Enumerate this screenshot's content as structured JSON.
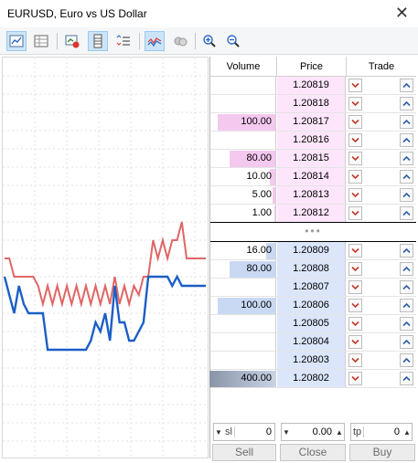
{
  "window": {
    "title": "EURUSD, Euro vs US Dollar"
  },
  "toolbar": {
    "buttons": [
      {
        "icon": "chart-with-settings-icon",
        "active": true
      },
      {
        "icon": "table-grid-icon",
        "active": false
      },
      {
        "icon": "chart-delete-icon",
        "active": false
      },
      {
        "icon": "depth-of-market-icon",
        "active": true
      },
      {
        "icon": "ticks-list-icon",
        "active": false
      },
      {
        "icon": "tick-chart-icon",
        "active": true
      },
      {
        "icon": "one-click-trading-icon",
        "active": false
      },
      {
        "icon": "zoom-in-icon",
        "active": false
      },
      {
        "icon": "zoom-out-icon",
        "active": false
      }
    ]
  },
  "headers": {
    "volume": "Volume",
    "price": "Price",
    "trade": "Trade"
  },
  "ask_rows": [
    {
      "volume": "",
      "price": "1.20819",
      "vol_fill": 0
    },
    {
      "volume": "",
      "price": "1.20818",
      "vol_fill": 0
    },
    {
      "volume": "100.00",
      "price": "1.20817",
      "vol_fill": 0.25
    },
    {
      "volume": "",
      "price": "1.20816",
      "vol_fill": 0
    },
    {
      "volume": "80.00",
      "price": "1.20815",
      "vol_fill": 0.2
    },
    {
      "volume": "10.00",
      "price": "1.20814",
      "vol_fill": 0.025
    },
    {
      "volume": "5.00",
      "price": "1.20813",
      "vol_fill": 0.0125
    },
    {
      "volume": "1.00",
      "price": "1.20812",
      "vol_fill": 0.0025
    }
  ],
  "spread_marker": "•••",
  "bid_rows": [
    {
      "volume": "16.00",
      "price": "1.20809",
      "vol_fill": 0.04
    },
    {
      "volume": "80.00",
      "price": "1.20808",
      "vol_fill": 0.2
    },
    {
      "volume": "",
      "price": "1.20807",
      "vol_fill": 0
    },
    {
      "volume": "100.00",
      "price": "1.20806",
      "vol_fill": 0.25
    },
    {
      "volume": "",
      "price": "1.20805",
      "vol_fill": 0
    },
    {
      "volume": "",
      "price": "1.20804",
      "vol_fill": 0
    },
    {
      "volume": "",
      "price": "1.20803",
      "vol_fill": 0
    },
    {
      "volume": "400.00",
      "price": "1.20802",
      "vol_fill": 1.0
    }
  ],
  "controls": {
    "sl_label": "sl",
    "sl_value": "0",
    "volume_value": "0.00",
    "tp_label": "tp",
    "tp_value": "0"
  },
  "actions": {
    "sell": "Sell",
    "close": "Close",
    "buy": "Buy"
  },
  "colors": {
    "ask_line": "#e06666",
    "bid_line": "#1c5ec6",
    "ask_bg": "#fde6fb",
    "bid_bg": "#dbe6fb",
    "sell_arrow": "#c0392b",
    "buy_arrow": "#2f5fa5"
  },
  "chart_data": {
    "type": "line",
    "series": [
      {
        "values": [
          8,
          8,
          10,
          10,
          10,
          10,
          10,
          11,
          13,
          11,
          13,
          11,
          13,
          11,
          13,
          11,
          13,
          11,
          13,
          11,
          13,
          11,
          13,
          10,
          13,
          11,
          13,
          11,
          12,
          10,
          10,
          6,
          8,
          6,
          8,
          6,
          6,
          4,
          8,
          8,
          8,
          8,
          8
        ]
      },
      {
        "values": [
          10,
          12,
          14,
          11,
          13,
          14,
          14,
          14,
          14,
          18,
          18,
          18,
          18,
          18,
          18,
          18,
          18,
          18,
          17,
          15,
          16,
          14,
          17,
          11,
          15,
          15,
          17,
          17,
          16,
          15,
          10,
          10,
          10,
          10,
          10,
          11,
          10,
          11,
          11,
          11,
          11,
          11,
          11
        ]
      }
    ]
  }
}
